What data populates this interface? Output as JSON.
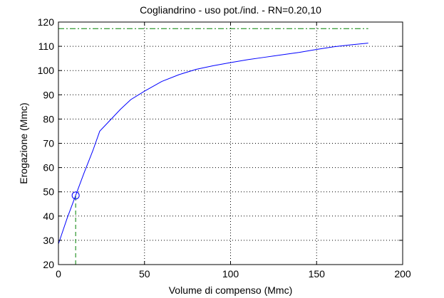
{
  "chart_data": {
    "type": "line",
    "title": "Cogliandrino  -  uso pot./ind.  -   RN=0.20,10",
    "xlabel": "Volume di compenso (Mmc)",
    "ylabel": "Erogazione (Mmc)",
    "xlim": [
      0,
      200
    ],
    "ylim": [
      20,
      120
    ],
    "xticks": [
      0,
      50,
      100,
      150,
      200
    ],
    "yticks": [
      20,
      30,
      40,
      50,
      60,
      70,
      80,
      90,
      100,
      110,
      120
    ],
    "grid": true,
    "series": [
      {
        "color": "#0000ff",
        "style": "solid",
        "x": [
          0,
          5,
          10,
          15,
          20,
          24,
          30,
          36,
          42,
          50,
          60,
          70,
          80,
          90,
          100,
          110,
          120,
          130,
          140,
          150,
          160,
          170,
          180
        ],
        "y": [
          28.5,
          39,
          48.5,
          58,
          67,
          75,
          79.5,
          84,
          88,
          91.5,
          95.5,
          98.3,
          100.5,
          102,
          103.3,
          104.5,
          105.5,
          106.5,
          107.5,
          108.7,
          109.8,
          110.6,
          111.3
        ]
      }
    ],
    "reference_lines": [
      {
        "orientation": "horizontal",
        "value": 117.3,
        "from": 0,
        "to": 180,
        "color": "#008000",
        "style": "dash-dot"
      },
      {
        "orientation": "vertical",
        "value": 10,
        "from": 20,
        "to": 48.5,
        "color": "#008000",
        "style": "dashed"
      }
    ],
    "markers": [
      {
        "x": 10,
        "y": 48.5,
        "shape": "circle",
        "color": "#0000ff"
      }
    ]
  }
}
